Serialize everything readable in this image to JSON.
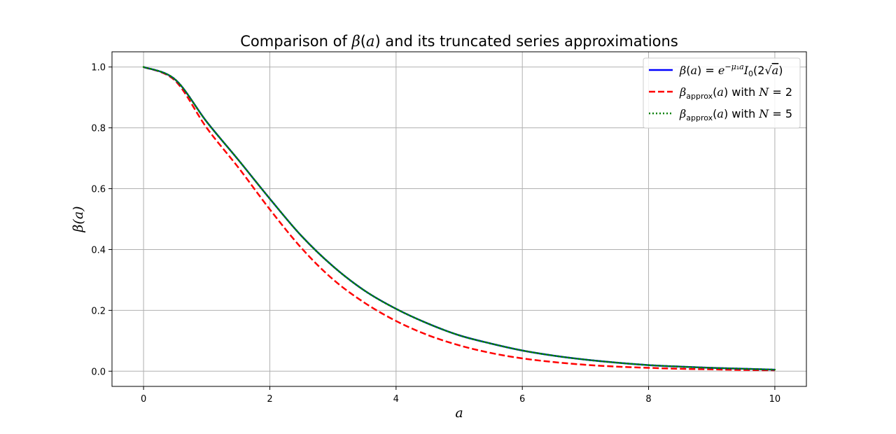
{
  "chart_data": {
    "type": "line",
    "title_parts": [
      "Comparison of ",
      "β",
      "(",
      "a",
      ") and its truncated series approximations"
    ],
    "xlabel": "a",
    "ylabel": "β(a)",
    "xlim": [
      -0.5,
      10.5
    ],
    "ylim": [
      -0.05,
      1.05
    ],
    "xticks": [
      0,
      2,
      4,
      6,
      8,
      10
    ],
    "yticks": [
      0.0,
      0.2,
      0.4,
      0.6,
      0.8,
      1.0
    ],
    "xtick_labels": [
      "0",
      "2",
      "4",
      "6",
      "8",
      "10"
    ],
    "ytick_labels": [
      "0.0",
      "0.2",
      "0.4",
      "0.6",
      "0.8",
      "1.0"
    ],
    "grid": true,
    "legend_position": "top-right",
    "x": [
      0,
      0.5,
      1,
      1.5,
      2,
      2.5,
      3,
      3.5,
      4,
      4.5,
      5,
      5.5,
      6,
      6.5,
      7,
      7.5,
      8,
      8.5,
      9,
      9.5,
      10
    ],
    "series": [
      {
        "name": "β(a) = e^{−μ₁a} I₀(2√a)",
        "color": "#0000ff",
        "style": "solid",
        "values": [
          1.0,
          0.959,
          0.82,
          0.695,
          0.567,
          0.445,
          0.345,
          0.265,
          0.205,
          0.157,
          0.118,
          0.091,
          0.068,
          0.051,
          0.038,
          0.028,
          0.02,
          0.015,
          0.011,
          0.008,
          0.005
        ]
      },
      {
        "name": "β_approx(a) with N = 2",
        "color": "#ff0000",
        "style": "dashed",
        "values": [
          1.0,
          0.955,
          0.8,
          0.67,
          0.532,
          0.405,
          0.302,
          0.225,
          0.165,
          0.119,
          0.085,
          0.06,
          0.042,
          0.03,
          0.021,
          0.015,
          0.011,
          0.008,
          0.006,
          0.004,
          0.003
        ]
      },
      {
        "name": "β_approx(a) with N = 5",
        "color": "#008000",
        "style": "dotted",
        "values": [
          1.0,
          0.959,
          0.82,
          0.695,
          0.567,
          0.445,
          0.345,
          0.265,
          0.205,
          0.157,
          0.118,
          0.091,
          0.068,
          0.051,
          0.038,
          0.028,
          0.02,
          0.015,
          0.011,
          0.008,
          0.005
        ]
      }
    ]
  }
}
